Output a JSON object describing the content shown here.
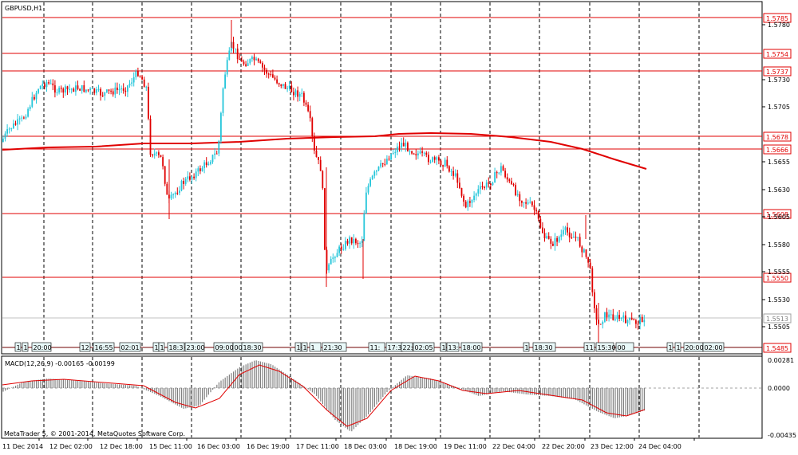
{
  "window": {
    "symbol_title": "GBPUSD,H1",
    "footer": "MetaTrader 5, © 2001-2014, MetaQuotes Software Corp."
  },
  "colors": {
    "bull": "#26c6da",
    "bear": "#e00000",
    "level_line": "#e00000",
    "ma_line": "#e00000",
    "grid": "#000000",
    "macd_hist": "#808080",
    "macd_signal": "#e00000"
  },
  "price_axis": {
    "ticks": [
      "1.5780",
      "1.5730",
      "1.5705",
      "1.5655",
      "1.5630",
      "1.5605",
      "1.5580",
      "1.5555",
      "1.5530",
      "1.5505"
    ],
    "current_price": "1.5513"
  },
  "levels": [
    "1.5785",
    "1.5754",
    "1.5737",
    "1.5678",
    "1.5666",
    "1.5608",
    "1.5550",
    "1.5485"
  ],
  "time_axis": [
    "11 Dec 2014",
    "12 Dec 02:00",
    "12 Dec 18:00",
    "15 Dec 11:00",
    "16 Dec 03:00",
    "16 Dec 19:00",
    "17 Dec 11:00",
    "18 Dec 03:00",
    "18 Dec 19:00",
    "19 Dec 11:00",
    "22 Dec 04:00",
    "22 Dec 20:00",
    "23 Dec 12:00",
    "24 Dec 04:00"
  ],
  "event_markers": [
    {
      "text": "1"
    },
    {
      "text": "1"
    },
    {
      "text": "20:00"
    },
    {
      "text": "12"
    },
    {
      "text": "16:55"
    },
    {
      "text": "02:01"
    },
    {
      "text": "1"
    },
    {
      "text": "1"
    },
    {
      "text": "18:3"
    },
    {
      "text": "23:00"
    },
    {
      "text": "09:00"
    },
    {
      "text": "00"
    },
    {
      "text": "18:30"
    },
    {
      "text": "1"
    },
    {
      "text": "1"
    },
    {
      "text": "1"
    },
    {
      "text": "21:30"
    },
    {
      "text": "11:"
    },
    {
      "text": "17:3"
    },
    {
      "text": "22:"
    },
    {
      "text": "02:05"
    },
    {
      "text": "1"
    },
    {
      "text": "13:"
    },
    {
      "text": "18:00"
    },
    {
      "text": "1"
    },
    {
      "text": "18:30"
    },
    {
      "text": "11:"
    },
    {
      "text": "15:30"
    },
    {
      "text": "00"
    },
    {
      "text": "1"
    },
    {
      "text": "1"
    },
    {
      "text": "20:00"
    },
    {
      "text": "02:00"
    }
  ],
  "macd": {
    "title": "MACD(12,26,9) -0.00165 -0.00199",
    "axis": [
      "0.00281",
      "0.0000",
      "-0.00435"
    ]
  }
}
